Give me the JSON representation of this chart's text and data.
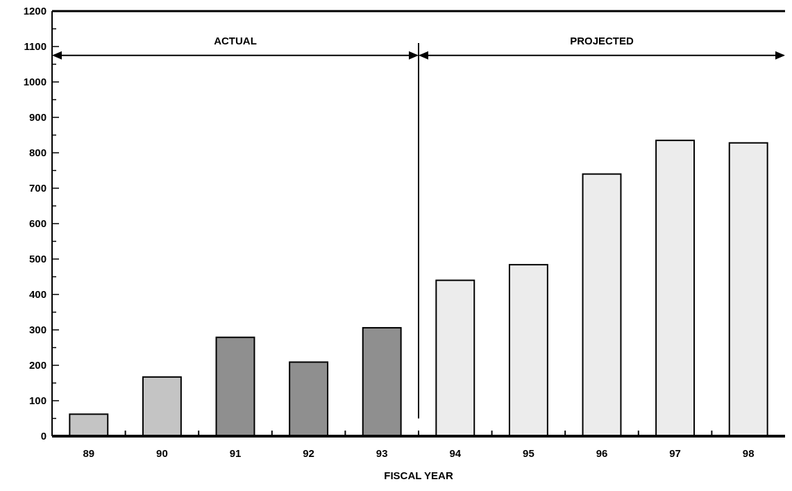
{
  "chart_data": {
    "type": "bar",
    "xlabel": "FISCAL YEAR",
    "categories": [
      "89",
      "90",
      "91",
      "92",
      "93",
      "94",
      "95",
      "96",
      "97",
      "98"
    ],
    "values": [
      62,
      167,
      279,
      209,
      306,
      440,
      484,
      740,
      835,
      828
    ],
    "colors": [
      "#c4c4c4",
      "#c4c4c4",
      "#8f8f8f",
      "#8f8f8f",
      "#8f8f8f",
      "#ececec",
      "#ececec",
      "#ececec",
      "#ececec",
      "#ececec"
    ],
    "ylim": [
      0,
      1200
    ],
    "yticks": [
      0,
      {
        "value": 50,
        "label": null
      },
      100,
      {
        "value": 150,
        "label": null
      },
      200,
      {
        "value": 250,
        "label": null
      },
      300,
      {
        "value": 350,
        "label": null
      },
      400,
      {
        "value": 450,
        "label": null
      },
      500,
      {
        "value": 550,
        "label": null
      },
      600,
      {
        "value": 650,
        "label": null
      },
      700,
      {
        "value": 750,
        "label": null
      },
      800,
      {
        "value": 850,
        "label": null
      },
      900,
      {
        "value": 950,
        "label": null
      },
      1000,
      {
        "value": 1050,
        "label": null
      },
      1100,
      {
        "value": 1150,
        "label": null
      },
      1200
    ],
    "annotations": [
      "ACTUAL",
      "PROJECTED"
    ]
  }
}
